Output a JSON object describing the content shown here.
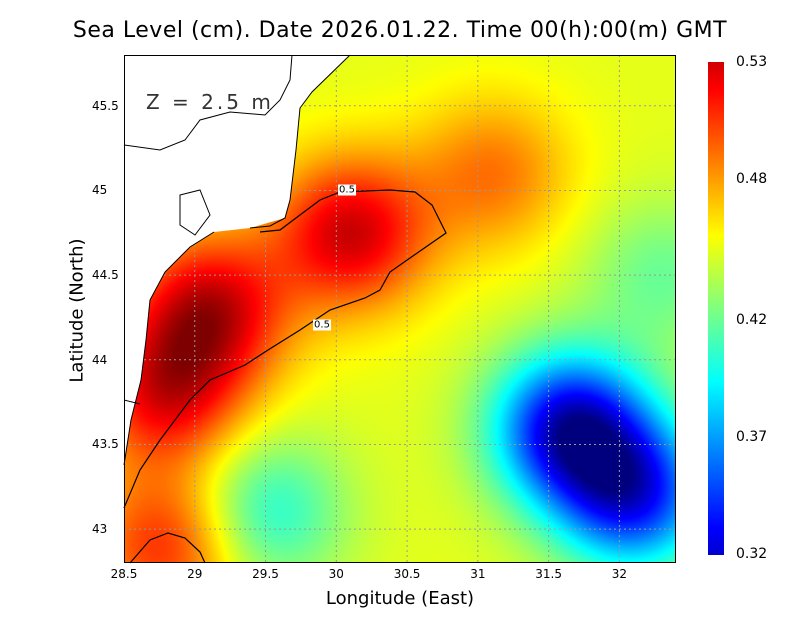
{
  "title": "Sea Level (cm). Date 2026.01.22. Time 00(h):00(m) GMT",
  "depth_label": "Z = 2.5 m",
  "xlabel": "Longitude (East)",
  "ylabel": "Latitude (North)",
  "x_ticks": [
    "28.5",
    "29",
    "29.5",
    "30",
    "30.5",
    "31",
    "31.5",
    "32"
  ],
  "y_ticks": [
    "43",
    "43.5",
    "44",
    "44.5",
    "45",
    "45.5"
  ],
  "colorbar": {
    "ticks": [
      "0.53",
      "0.48",
      "0.42",
      "0.37",
      "0.32"
    ],
    "min": 0.32,
    "max": 0.53
  },
  "contour_labels": [
    "0.5",
    "0.5"
  ],
  "chart_data": {
    "type": "heatmap",
    "title": "Sea Level (cm). Date 2026.01.22. Time 00(h):00(m) GMT",
    "xlabel": "Longitude (East)",
    "ylabel": "Latitude (North)",
    "xlim": [
      28.5,
      32.4
    ],
    "ylim": [
      42.8,
      45.8
    ],
    "zlim": [
      0.32,
      0.53
    ],
    "contour_levels": [
      0.5
    ],
    "features": [
      {
        "lon": 29.1,
        "lat": 44.3,
        "value": 0.53
      },
      {
        "lon": 30.1,
        "lat": 44.75,
        "value": 0.53
      },
      {
        "lon": 28.8,
        "lat": 43.8,
        "value": 0.52
      },
      {
        "lon": 31.1,
        "lat": 45.1,
        "value": 0.49
      },
      {
        "lon": 30.6,
        "lat": 45.5,
        "value": 0.45
      },
      {
        "lon": 31.65,
        "lat": 43.6,
        "value": 0.32
      },
      {
        "lon": 32.1,
        "lat": 43.2,
        "value": 0.34
      },
      {
        "lon": 29.5,
        "lat": 43.1,
        "value": 0.4
      },
      {
        "lon": 32.3,
        "lat": 44.5,
        "value": 0.42
      },
      {
        "lon": 28.8,
        "lat": 42.9,
        "value": 0.51
      }
    ]
  }
}
